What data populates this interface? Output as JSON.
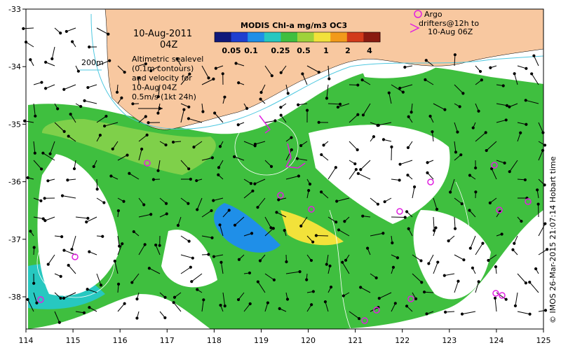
{
  "map": {
    "date_label": "10-Aug-2011",
    "time_label": "04Z",
    "contour_label": "200m",
    "legend_title": "MODIS Chl-a mg/m3 OC3",
    "legend_ticks": [
      "0.05",
      "0.1",
      "0.25",
      "0.5",
      "1",
      "2",
      "4"
    ],
    "legend_colors": [
      "#10187a",
      "#1f3fd0",
      "#1f8fe8",
      "#27c8c0",
      "#3fbf3f",
      "#9fd23a",
      "#f2e23a",
      "#f29a1a",
      "#d23a1a",
      "#8a1a10"
    ],
    "info_lines": [
      "Altimetric sealevel",
      "(0.1m contours)",
      "and velocity for",
      "10-Aug 04Z",
      "0.5m/s (1kt 24h)"
    ],
    "argo_lines": [
      "Argo",
      "drifters@12h to",
      "10-Aug 06Z"
    ],
    "credit": "© IMOS 26-Mar-2015 21:07:14 Hobart time",
    "lon_ticks": [
      "114",
      "115",
      "116",
      "117",
      "118",
      "119",
      "120",
      "121",
      "122",
      "123",
      "124",
      "125"
    ],
    "lat_ticks": [
      "-33",
      "-34",
      "-35",
      "-36",
      "-37",
      "-38"
    ],
    "colors": {
      "land": "#f8c8a0",
      "ocean": "#ffffff",
      "argo": "#e020e0",
      "chl_mid": "#3fbf3f"
    }
  }
}
